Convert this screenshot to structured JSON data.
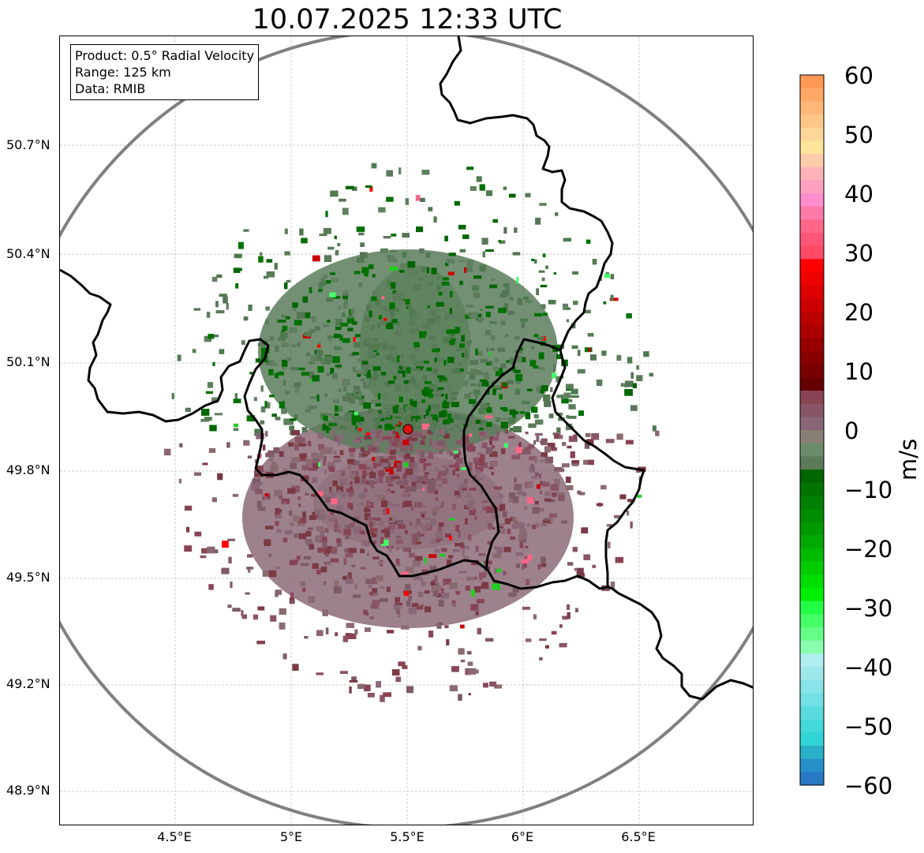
{
  "title": "10.07.2025 12:33 UTC",
  "info_box": {
    "product": "Product: 0.5° Radial Velocity",
    "range": "Range: 125 km",
    "data": "Data: RMIB"
  },
  "map": {
    "lat_labels": [
      "50.7°N",
      "50.4°N",
      "50.1°N",
      "49.8°N",
      "49.5°N",
      "49.2°N",
      "48.9°N"
    ],
    "lon_labels": [
      "4.5°E",
      "5°E",
      "5.5°E",
      "6°E",
      "6.5°E"
    ],
    "radar_site_color": "#e01010",
    "range_ring_color": "#808080",
    "border_color": "#000000"
  },
  "colorbar": {
    "unit": "m/s",
    "ticks": [
      "60",
      "50",
      "40",
      "30",
      "20",
      "10",
      "0",
      "−10",
      "−20",
      "−30",
      "−40",
      "−50",
      "−60"
    ],
    "colors_top_to_bottom": [
      "#ff9955",
      "#ffa866",
      "#ffb777",
      "#ffc688",
      "#ffd69a",
      "#ffe599",
      "#ffccaa",
      "#ffb3b8",
      "#ffa0c0",
      "#ff8ccc",
      "#ff7aa8",
      "#ff6688",
      "#ff5577",
      "#ff4a66",
      "#ff0000",
      "#ee0000",
      "#dd0000",
      "#cc0000",
      "#bb0000",
      "#aa0000",
      "#990000",
      "#880000",
      "#770000",
      "#660000",
      "#884455",
      "#885566",
      "#886677",
      "#888077",
      "#6b8c6b",
      "#5a7a5a",
      "#006600",
      "#007300",
      "#008000",
      "#008c00",
      "#009a00",
      "#00aa00",
      "#00bb00",
      "#00cc00",
      "#00dd00",
      "#00ee00",
      "#22ff44",
      "#44ff66",
      "#66ff88",
      "#88ffaa",
      "#b0eef0",
      "#9ee8ec",
      "#88e4e8",
      "#72e0e4",
      "#5adcde",
      "#44d8da",
      "#30d4d6",
      "#2ab0c8",
      "#2690c8",
      "#2a78c4"
    ]
  }
}
